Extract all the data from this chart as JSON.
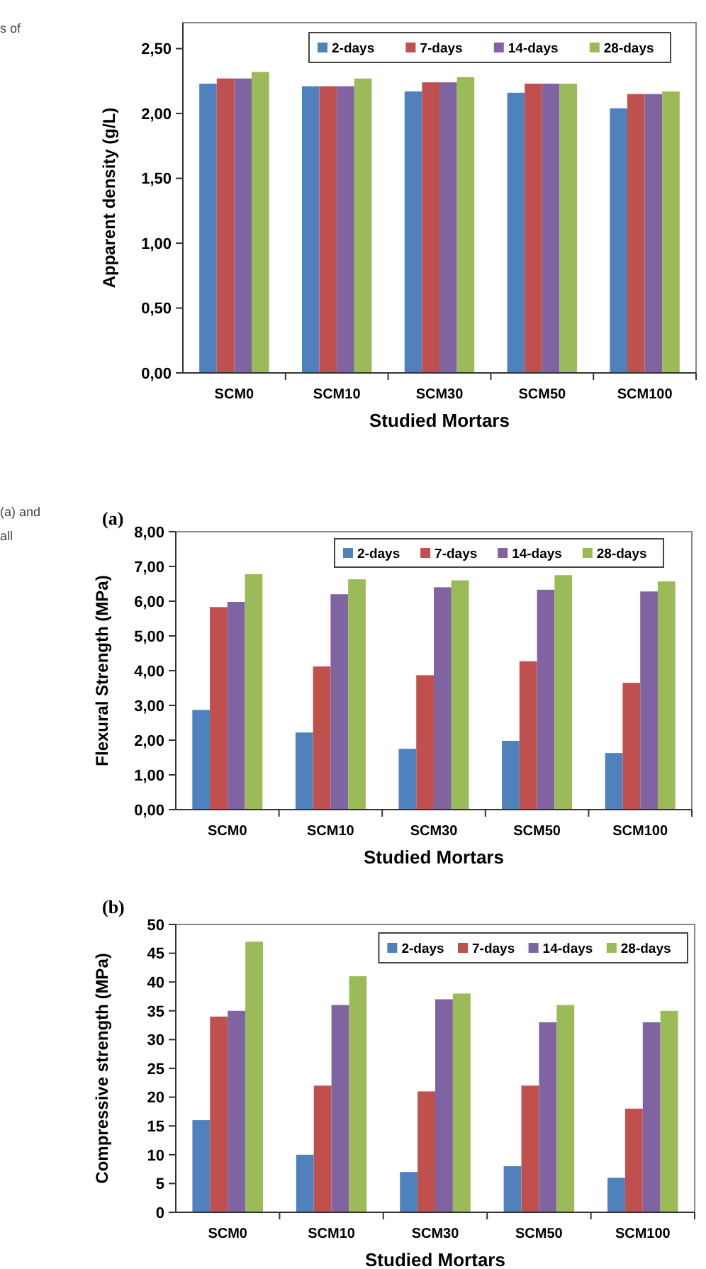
{
  "chart_data": [
    {
      "type": "bar",
      "xlabel": "Studied Mortars",
      "ylabel": "Apparent density (g/L)",
      "categories": [
        "SCM0",
        "SCM10",
        "SCM30",
        "SCM50",
        "SCM100"
      ],
      "series": [
        {
          "name": "2-days",
          "color": "#4f81bd",
          "values": [
            2.23,
            2.21,
            2.17,
            2.16,
            2.04
          ]
        },
        {
          "name": "7-days",
          "color": "#c0504d",
          "values": [
            2.27,
            2.21,
            2.24,
            2.23,
            2.15
          ]
        },
        {
          "name": "14-days",
          "color": "#8064a2",
          "values": [
            2.27,
            2.21,
            2.24,
            2.23,
            2.15
          ]
        },
        {
          "name": "28-days",
          "color": "#9bbb59",
          "values": [
            2.32,
            2.27,
            2.28,
            2.23,
            2.17
          ]
        }
      ],
      "ylim": [
        0,
        2.7
      ],
      "yticks": [
        {
          "value": 0,
          "label": "0,00"
        },
        {
          "value": 0.5,
          "label": "0,50"
        },
        {
          "value": 1,
          "label": "1,00"
        },
        {
          "value": 1.5,
          "label": "1,50"
        },
        {
          "value": 2,
          "label": "2,00"
        },
        {
          "value": 2.5,
          "label": "2,50"
        }
      ],
      "legend": "top right",
      "annotations": [
        "s of"
      ]
    },
    {
      "type": "bar",
      "xlabel": "Studied Mortars",
      "ylabel": "Flexural Strength (MPa)",
      "categories": [
        "SCM0",
        "SCM10",
        "SCM30",
        "SCM50",
        "SCM100"
      ],
      "series": [
        {
          "name": "2-days",
          "color": "#4f81bd",
          "values": [
            2.87,
            2.22,
            1.75,
            1.98,
            1.63
          ]
        },
        {
          "name": "7-days",
          "color": "#c0504d",
          "values": [
            5.83,
            4.12,
            3.87,
            4.27,
            3.65
          ]
        },
        {
          "name": "14-days",
          "color": "#8064a2",
          "values": [
            5.98,
            6.2,
            6.4,
            6.33,
            6.28
          ]
        },
        {
          "name": "28-days",
          "color": "#9bbb59",
          "values": [
            6.78,
            6.63,
            6.6,
            6.75,
            6.57
          ]
        }
      ],
      "ylim": [
        0,
        8
      ],
      "yticks": [
        {
          "value": 0,
          "label": "0,00"
        },
        {
          "value": 1,
          "label": "1,00"
        },
        {
          "value": 2,
          "label": "2,00"
        },
        {
          "value": 3,
          "label": "3,00"
        },
        {
          "value": 4,
          "label": "4,00"
        },
        {
          "value": 5,
          "label": "5,00"
        },
        {
          "value": 6,
          "label": "6,00"
        },
        {
          "value": 7,
          "label": "7,00"
        },
        {
          "value": 8,
          "label": "8,00"
        }
      ],
      "legend": "top right",
      "annotations": [
        "(a) and",
        "all",
        "(a)"
      ]
    },
    {
      "type": "bar",
      "xlabel": "Studied Mortars",
      "ylabel": "Compressive strength (MPa)",
      "categories": [
        "SCM0",
        "SCM10",
        "SCM30",
        "SCM50",
        "SCM100"
      ],
      "series": [
        {
          "name": "2-days",
          "color": "#4f81bd",
          "values": [
            16,
            10,
            7,
            8,
            6
          ]
        },
        {
          "name": "7-days",
          "color": "#c0504d",
          "values": [
            34,
            22,
            21,
            22,
            18
          ]
        },
        {
          "name": "14-days",
          "color": "#8064a2",
          "values": [
            35,
            36,
            37,
            33,
            33
          ]
        },
        {
          "name": "28-days",
          "color": "#9bbb59",
          "values": [
            47,
            41,
            38,
            36,
            35
          ]
        }
      ],
      "ylim": [
        0,
        50
      ],
      "yticks": [
        0,
        5,
        10,
        15,
        20,
        25,
        30,
        35,
        40,
        45,
        50
      ],
      "legend": "top right",
      "annotations": [
        "(b)"
      ]
    }
  ]
}
